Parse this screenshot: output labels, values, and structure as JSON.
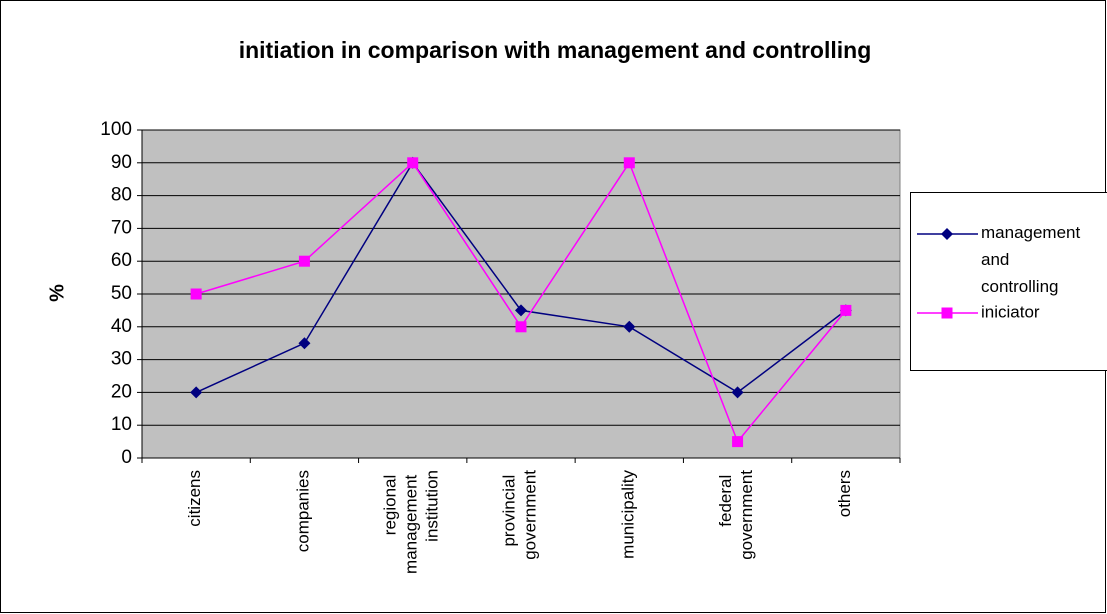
{
  "chart_data": {
    "type": "line",
    "title": "initiation in comparison with management and controlling",
    "y_label": "%",
    "categories": [
      "citizens",
      "companies",
      "regional management institution",
      "provincial government",
      "municipality",
      "federal government",
      "others"
    ],
    "series": [
      {
        "name": "management and controlling",
        "color": "#000080",
        "marker": "diamond",
        "values": [
          20,
          35,
          90,
          45,
          40,
          20,
          45
        ]
      },
      {
        "name": "iniciator",
        "color": "#ff00ff",
        "marker": "square",
        "values": [
          50,
          60,
          90,
          40,
          90,
          5,
          45
        ]
      }
    ],
    "ylim": [
      0,
      100
    ],
    "yticks": [
      0,
      10,
      20,
      30,
      40,
      50,
      60,
      70,
      80,
      90,
      100
    ],
    "grid": true,
    "legend": "right"
  }
}
